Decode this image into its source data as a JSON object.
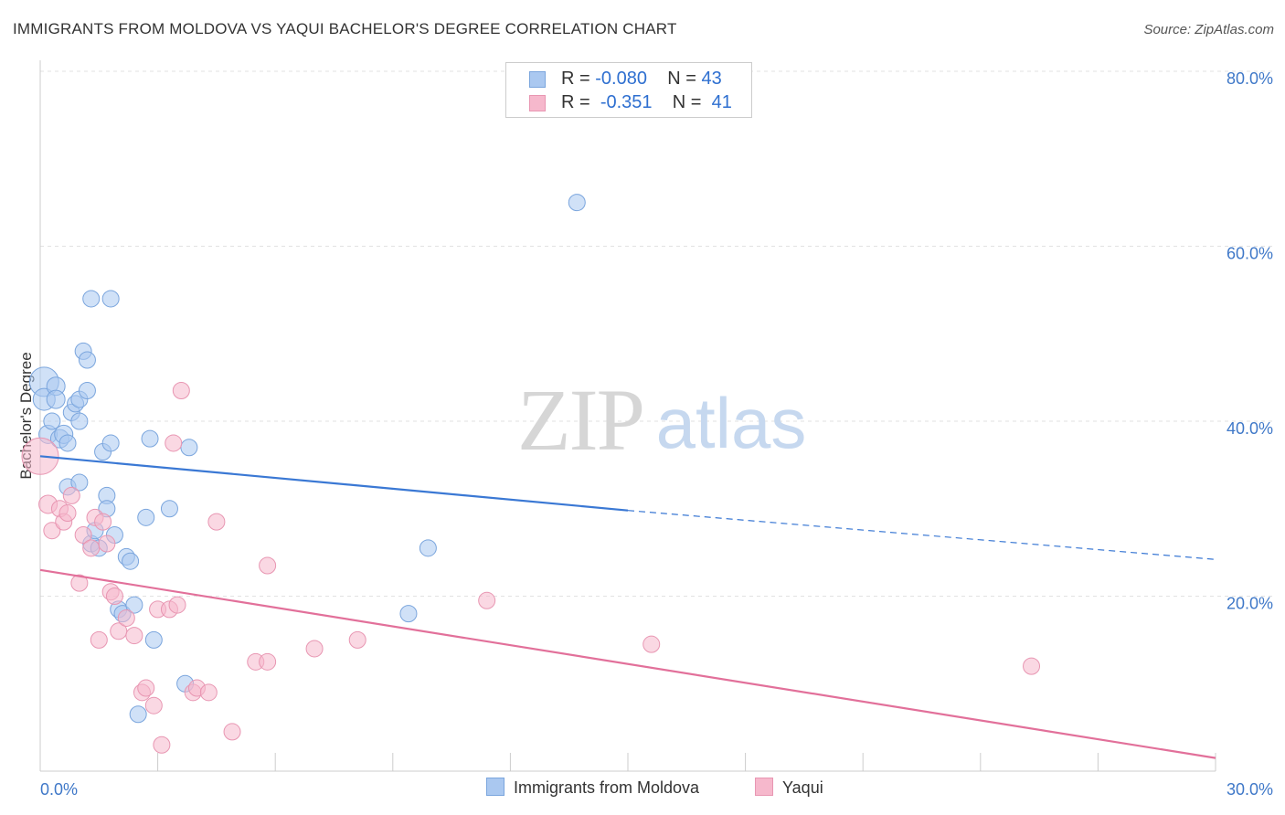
{
  "title": "IMMIGRANTS FROM MOLDOVA VS YAQUI BACHELOR'S DEGREE CORRELATION CHART",
  "source": "Source: ZipAtlas.com",
  "watermark": {
    "zip": "ZIP",
    "atlas": "atlas"
  },
  "legend_stats": [
    {
      "r_label": "R =",
      "r_value": "-0.080",
      "n_label": "N =",
      "n_value": "43"
    },
    {
      "r_label": "R =",
      "r_value": "-0.351",
      "n_label": "N =",
      "n_value": "41"
    }
  ],
  "legend_bottom": [
    "Immigrants from Moldova",
    "Yaqui"
  ],
  "colors": {
    "blue_fill": "#aac8f0",
    "blue_stroke": "#7aa5dd",
    "blue_line": "#3a78d4",
    "pink_fill": "#f6b8cc",
    "pink_stroke": "#e896b2",
    "pink_line": "#e2709a",
    "tick_label": "#3f78c8"
  },
  "chart_data": {
    "type": "scatter",
    "title": "IMMIGRANTS FROM MOLDOVA VS YAQUI BACHELOR'S DEGREE CORRELATION CHART",
    "xlabel": "",
    "ylabel": "Bachelor's Degree",
    "xlim": [
      0,
      30
    ],
    "ylim": [
      0,
      80
    ],
    "x_tick_labels": [
      "0.0%",
      "30.0%"
    ],
    "y_ticks": [
      20,
      40,
      60,
      80
    ],
    "y_tick_labels": [
      "20.0%",
      "40.0%",
      "60.0%",
      "80.0%"
    ],
    "grid": true,
    "legend_position": "bottom",
    "series": [
      {
        "name": "Immigrants from Moldova",
        "color": "#aac8f0",
        "trend": {
          "x0": 0,
          "y0": 36.0,
          "x1": 15.0,
          "y1": 29.8,
          "x_dash_end": 30,
          "y_dash_end": 24.2
        },
        "points": [
          [
            0.1,
            44.5,
            16
          ],
          [
            0.1,
            42.5,
            12
          ],
          [
            0.2,
            38.5,
            10
          ],
          [
            0.4,
            44.0,
            10
          ],
          [
            0.4,
            42.5,
            10
          ],
          [
            0.5,
            38.0,
            10
          ],
          [
            0.6,
            38.5,
            10
          ],
          [
            0.7,
            37.5,
            9
          ],
          [
            0.7,
            32.5,
            9
          ],
          [
            0.8,
            41.0,
            9
          ],
          [
            0.9,
            42.0,
            9
          ],
          [
            1.0,
            42.5,
            9
          ],
          [
            1.0,
            33.0,
            9
          ],
          [
            1.1,
            48.0,
            9
          ],
          [
            1.2,
            47.0,
            9
          ],
          [
            1.2,
            43.5,
            9
          ],
          [
            1.3,
            54.0,
            9
          ],
          [
            1.3,
            26.0,
            9
          ],
          [
            1.4,
            27.5,
            9
          ],
          [
            1.5,
            25.5,
            9
          ],
          [
            1.6,
            36.5,
            9
          ],
          [
            1.7,
            31.5,
            9
          ],
          [
            1.7,
            30.0,
            9
          ],
          [
            1.8,
            54.0,
            9
          ],
          [
            1.8,
            37.5,
            9
          ],
          [
            1.9,
            27.0,
            9
          ],
          [
            2.0,
            18.5,
            9
          ],
          [
            2.1,
            18.0,
            9
          ],
          [
            2.2,
            24.5,
            9
          ],
          [
            2.3,
            24.0,
            9
          ],
          [
            2.4,
            19.0,
            9
          ],
          [
            2.5,
            6.5,
            9
          ],
          [
            2.7,
            29.0,
            9
          ],
          [
            2.8,
            38.0,
            9
          ],
          [
            2.9,
            15.0,
            9
          ],
          [
            3.3,
            30.0,
            9
          ],
          [
            3.7,
            10.0,
            9
          ],
          [
            3.8,
            37.0,
            9
          ],
          [
            9.9,
            25.5,
            9
          ],
          [
            9.4,
            18.0,
            9
          ],
          [
            13.7,
            65.0,
            9
          ],
          [
            0.3,
            40.0,
            9
          ],
          [
            1.0,
            40.0,
            9
          ]
        ]
      },
      {
        "name": "Yaqui",
        "color": "#f6b8cc",
        "trend": {
          "x0": 0,
          "y0": 23.0,
          "x1": 30,
          "y1": 1.5
        },
        "points": [
          [
            0.0,
            36.0,
            20
          ],
          [
            0.2,
            30.5,
            10
          ],
          [
            0.3,
            27.5,
            9
          ],
          [
            0.5,
            30.0,
            9
          ],
          [
            0.6,
            28.5,
            9
          ],
          [
            0.7,
            29.5,
            9
          ],
          [
            0.8,
            31.5,
            9
          ],
          [
            1.0,
            21.5,
            9
          ],
          [
            1.1,
            27.0,
            9
          ],
          [
            1.3,
            25.5,
            9
          ],
          [
            1.4,
            29.0,
            9
          ],
          [
            1.5,
            15.0,
            9
          ],
          [
            1.6,
            28.5,
            9
          ],
          [
            1.7,
            26.0,
            9
          ],
          [
            1.8,
            20.5,
            9
          ],
          [
            1.9,
            20.0,
            9
          ],
          [
            2.0,
            16.0,
            9
          ],
          [
            2.2,
            17.5,
            9
          ],
          [
            2.4,
            15.5,
            9
          ],
          [
            2.6,
            9.0,
            9
          ],
          [
            2.7,
            9.5,
            9
          ],
          [
            2.9,
            7.5,
            9
          ],
          [
            3.0,
            18.5,
            9
          ],
          [
            3.1,
            3.0,
            9
          ],
          [
            3.3,
            18.5,
            9
          ],
          [
            3.4,
            37.5,
            9
          ],
          [
            3.5,
            19.0,
            9
          ],
          [
            3.6,
            43.5,
            9
          ],
          [
            3.9,
            9.0,
            9
          ],
          [
            4.0,
            9.5,
            9
          ],
          [
            4.3,
            9.0,
            9
          ],
          [
            4.5,
            28.5,
            9
          ],
          [
            4.9,
            4.5,
            9
          ],
          [
            5.5,
            12.5,
            9
          ],
          [
            5.8,
            12.5,
            9
          ],
          [
            5.8,
            23.5,
            9
          ],
          [
            7.0,
            14.0,
            9
          ],
          [
            8.1,
            15.0,
            9
          ],
          [
            11.4,
            19.5,
            9
          ],
          [
            15.6,
            14.5,
            9
          ],
          [
            25.3,
            12.0,
            9
          ]
        ]
      }
    ]
  }
}
